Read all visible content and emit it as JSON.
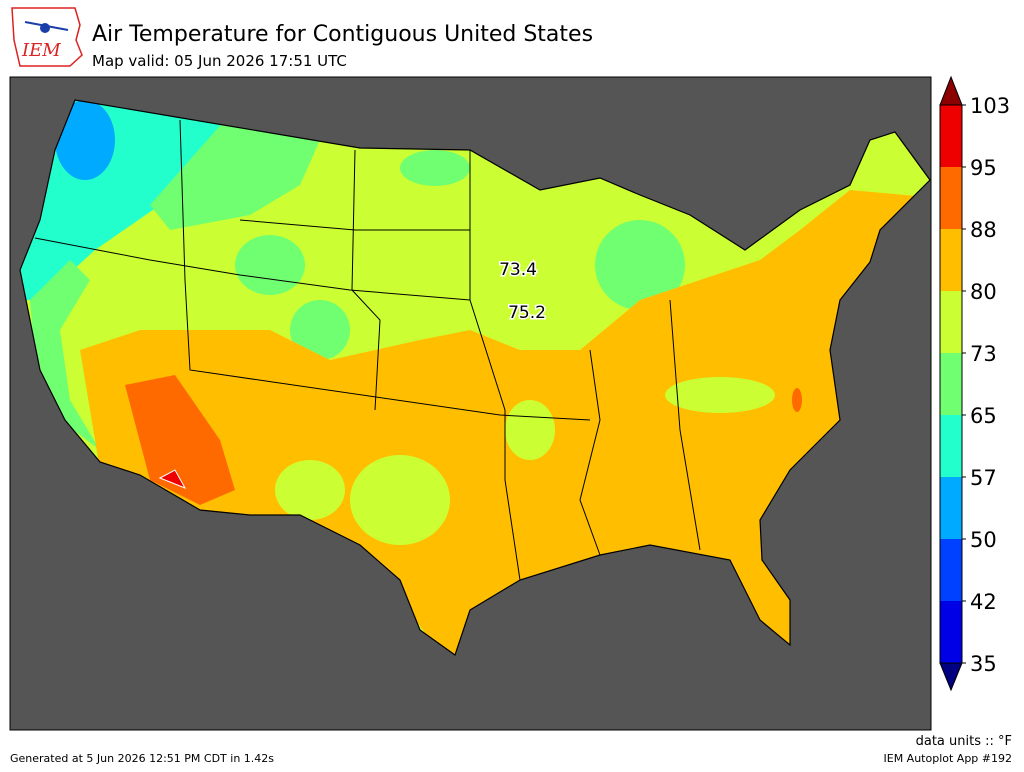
{
  "header": {
    "logo": "IEM",
    "title": "Air Temperature for Contiguous United States",
    "subtitle": "Map valid: 05 Jun 2026 17:51 UTC"
  },
  "colorbar": {
    "levels": [
      35,
      42,
      50,
      57,
      65,
      73,
      80,
      88,
      95,
      103
    ],
    "colors": [
      "#0000e6",
      "#0040ff",
      "#00aaff",
      "#22ffcc",
      "#70ff70",
      "#ccff33",
      "#ffbf00",
      "#ff6a00",
      "#ee0000"
    ],
    "under_color": "#000080",
    "over_color": "#8b0000"
  },
  "stations": [
    {
      "label": "73.4"
    },
    {
      "label": "75.2"
    }
  ],
  "footer": {
    "units": "data units :: °F",
    "generated": "Generated at 5 Jun 2026 12:51 PM CDT in 1.42s",
    "app": "IEM Autoplot App #192"
  }
}
